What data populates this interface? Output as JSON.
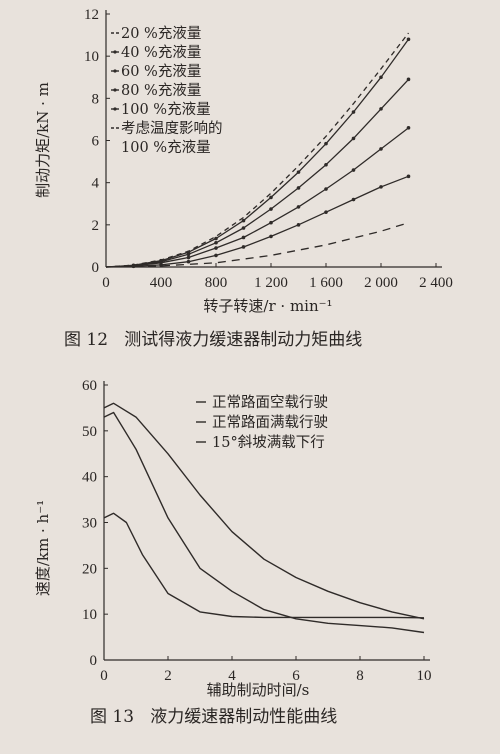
{
  "chart_data": [
    {
      "type": "line",
      "caption": "图 12   测试得液力缓速器制动力矩曲线",
      "xlabel": "转子转速/r · min⁻¹",
      "ylabel": "制动力矩/kN · m",
      "xlim": [
        0,
        2400
      ],
      "ylim": [
        0,
        12
      ],
      "xticks": [
        "0",
        "400",
        "800",
        "1 200",
        "1 600",
        "2 000",
        "2 400"
      ],
      "yticks": [
        "0",
        "2",
        "4",
        "6",
        "8",
        "10",
        "12"
      ],
      "legend_position": "top-left",
      "series": [
        {
          "name": "20 %充液量",
          "dash": "8,6",
          "marker": false,
          "x": [
            0,
            400,
            800,
            1200,
            1600,
            2000,
            2200
          ],
          "y": [
            0,
            0.05,
            0.2,
            0.55,
            1.05,
            1.7,
            2.1
          ]
        },
        {
          "name": "40 %充液量",
          "dash": "",
          "marker": true,
          "x": [
            0,
            200,
            400,
            600,
            800,
            1000,
            1200,
            1400,
            1600,
            1800,
            2000,
            2200
          ],
          "y": [
            0,
            0.03,
            0.1,
            0.25,
            0.55,
            0.95,
            1.45,
            2.0,
            2.6,
            3.2,
            3.8,
            4.3
          ]
        },
        {
          "name": "60 %充液量",
          "dash": "",
          "marker": true,
          "x": [
            0,
            200,
            400,
            600,
            800,
            1000,
            1200,
            1400,
            1600,
            1800,
            2000,
            2200
          ],
          "y": [
            0,
            0.05,
            0.2,
            0.45,
            0.9,
            1.4,
            2.1,
            2.85,
            3.7,
            4.6,
            5.6,
            6.6
          ]
        },
        {
          "name": "80 %充液量",
          "dash": "",
          "marker": true,
          "x": [
            0,
            200,
            400,
            600,
            800,
            1000,
            1200,
            1400,
            1600,
            1800,
            2000,
            2200
          ],
          "y": [
            0,
            0.06,
            0.25,
            0.6,
            1.15,
            1.85,
            2.75,
            3.75,
            4.85,
            6.1,
            7.5,
            8.9
          ]
        },
        {
          "name": "100 %充液量",
          "dash": "",
          "marker": true,
          "x": [
            0,
            200,
            400,
            600,
            800,
            1000,
            1200,
            1400,
            1600,
            1800,
            2000,
            2200
          ],
          "y": [
            0,
            0.08,
            0.3,
            0.7,
            1.35,
            2.2,
            3.3,
            4.5,
            5.85,
            7.35,
            9.0,
            10.8
          ]
        },
        {
          "name": "考虑温度影响的 100 %充液量",
          "legend_lines": [
            "考虑温度影响的",
            "100 %充液量"
          ],
          "dash": "5,4",
          "marker": false,
          "x": [
            0,
            200,
            400,
            600,
            800,
            1000,
            1200,
            1400,
            1600,
            1800,
            2000,
            2200
          ],
          "y": [
            0,
            0.09,
            0.33,
            0.75,
            1.45,
            2.35,
            3.5,
            4.8,
            6.2,
            7.75,
            9.4,
            11.1
          ]
        }
      ]
    },
    {
      "type": "line",
      "caption": "图 13   液力缓速器制动性能曲线",
      "xlabel": "辅助制动时间/s",
      "ylabel": "速度/km · h⁻¹",
      "xlim": [
        0,
        10
      ],
      "ylim": [
        0,
        60
      ],
      "xticks": [
        "0",
        "2",
        "4",
        "6",
        "8",
        "10"
      ],
      "yticks": [
        "0",
        "10",
        "20",
        "30",
        "40",
        "50",
        "60"
      ],
      "legend_position": "top-right",
      "series": [
        {
          "name": "正常路面空载行驶",
          "dash": "",
          "x": [
            0,
            0.3,
            1,
            2,
            3,
            4,
            5,
            6,
            7,
            8,
            9,
            10
          ],
          "y": [
            55,
            56,
            53,
            45,
            36,
            28,
            22,
            18,
            15,
            12.5,
            10.5,
            9
          ]
        },
        {
          "name": "正常路面满载行驶",
          "dash": "",
          "x": [
            0,
            0.3,
            1,
            2,
            3,
            4,
            5,
            6,
            7,
            8,
            9,
            10
          ],
          "y": [
            53,
            54,
            46,
            31,
            20,
            15,
            11,
            9,
            8,
            7.5,
            7,
            6
          ]
        },
        {
          "name": "15°斜坡满载下行",
          "dash": "",
          "x": [
            0,
            0.3,
            0.7,
            1.2,
            2,
            3,
            4,
            5,
            6,
            7,
            8,
            9,
            10
          ],
          "y": [
            31,
            32,
            30,
            23,
            14.5,
            10.5,
            9.5,
            9.3,
            9.3,
            9.3,
            9.3,
            9.3,
            9.2
          ]
        }
      ]
    }
  ]
}
